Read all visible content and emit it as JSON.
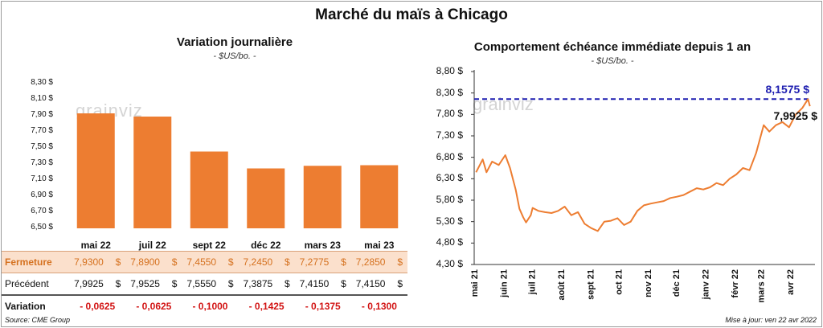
{
  "title": "Marché du maïs à Chicago",
  "left_chart": {
    "title": "Variation  journalière",
    "unit": "- $US/bo. -",
    "watermark": "grainviz",
    "yticks": [
      "8,30 $",
      "8,10 $",
      "7,90 $",
      "7,70 $",
      "7,50 $",
      "7,30 $",
      "7,10 $",
      "6,90 $",
      "6,70 $",
      "6,50 $"
    ]
  },
  "right_chart": {
    "title": "Comportement  échéance immédiate  depuis 1 an",
    "unit": "- $US/bo. -",
    "watermark": "grainviz",
    "yticks": [
      "8,80 $",
      "8,30 $",
      "7,80 $",
      "7,30 $",
      "6,80 $",
      "6,30 $",
      "5,80 $",
      "5,30 $",
      "4,80 $",
      "4,30 $"
    ],
    "xticks": [
      "mai 21",
      "juin 21",
      "juil 21",
      "août 21",
      "sept 21",
      "oct 21",
      "nov 21",
      "déc 21",
      "janv 22",
      "févr 22",
      "mars 22",
      "avr 22"
    ],
    "max_label": "8,1575 $",
    "last_label": "7,9925 $"
  },
  "table": {
    "row_labels": {
      "close": "Fermeture",
      "prev": "Précédent",
      "var": "Variation"
    },
    "currency": "$",
    "close": [
      "7,9300",
      "7,8900",
      "7,4550",
      "7,2450",
      "7,2775",
      "7,2850"
    ],
    "prev": [
      "7,9925",
      "7,9525",
      "7,5550",
      "7,3875",
      "7,4150",
      "7,4150"
    ],
    "var": [
      "- 0,0625",
      "- 0,0625",
      "- 0,1000",
      "- 0,1425",
      "- 0,1375",
      "- 0,1300"
    ]
  },
  "footer": {
    "source": "Source: CME Group",
    "update": "Mise à jour: ven 22 avr 2022"
  },
  "colors": {
    "bar": "#ed7d31",
    "line": "#ed7d31",
    "max_line": "#1f1fb0"
  },
  "chart_data": [
    {
      "type": "bar",
      "title": "Variation  journalière",
      "ylabel": "- $US/bo. -",
      "categories": [
        "mai 22",
        "juil 22",
        "sept 22",
        "déc 22",
        "mars 23",
        "mai 23"
      ],
      "values": [
        7.93,
        7.89,
        7.455,
        7.245,
        7.2775,
        7.285
      ],
      "ylim": [
        6.5,
        8.3
      ],
      "grid": false,
      "legend": "none"
    },
    {
      "type": "line",
      "title": "Comportement  échéance immédiate  depuis 1 an",
      "ylabel": "- $US/bo. -",
      "ylim": [
        4.3,
        8.8
      ],
      "grid": false,
      "legend": "none",
      "x": [
        "2021-05-03",
        "2021-05-10",
        "2021-05-14",
        "2021-05-20",
        "2021-05-27",
        "2021-06-03",
        "2021-06-08",
        "2021-06-14",
        "2021-06-18",
        "2021-06-22",
        "2021-06-25",
        "2021-06-30",
        "2021-07-02",
        "2021-07-08",
        "2021-07-15",
        "2021-07-22",
        "2021-07-29",
        "2021-08-05",
        "2021-08-12",
        "2021-08-19",
        "2021-08-26",
        "2021-09-02",
        "2021-09-09",
        "2021-09-16",
        "2021-09-23",
        "2021-09-30",
        "2021-10-07",
        "2021-10-14",
        "2021-10-21",
        "2021-10-28",
        "2021-11-04",
        "2021-11-11",
        "2021-11-18",
        "2021-11-25",
        "2021-12-02",
        "2021-12-09",
        "2021-12-16",
        "2021-12-23",
        "2021-12-30",
        "2022-01-06",
        "2022-01-13",
        "2022-01-20",
        "2022-01-27",
        "2022-02-03",
        "2022-02-10",
        "2022-02-17",
        "2022-02-24",
        "2022-03-01",
        "2022-03-04",
        "2022-03-10",
        "2022-03-17",
        "2022-03-24",
        "2022-03-31",
        "2022-04-07",
        "2022-04-14",
        "2022-04-20",
        "2022-04-22"
      ],
      "series": [
        {
          "values": [
            6.45,
            6.75,
            6.45,
            6.7,
            6.62,
            6.85,
            6.55,
            6.05,
            5.6,
            5.4,
            5.28,
            5.45,
            5.62,
            5.55,
            5.52,
            5.5,
            5.55,
            5.65,
            5.45,
            5.52,
            5.25,
            5.15,
            5.08,
            5.3,
            5.32,
            5.38,
            5.22,
            5.3,
            5.55,
            5.68,
            5.72,
            5.75,
            5.78,
            5.85,
            5.88,
            5.92,
            6.0,
            6.08,
            6.05,
            6.1,
            6.2,
            6.15,
            6.3,
            6.4,
            6.55,
            6.5,
            6.9,
            7.3,
            7.55,
            7.4,
            7.55,
            7.62,
            7.5,
            7.8,
            7.95,
            8.1575,
            7.9925
          ]
        }
      ],
      "annotations": [
        "8,1575 $",
        "7,9925 $"
      ]
    }
  ]
}
